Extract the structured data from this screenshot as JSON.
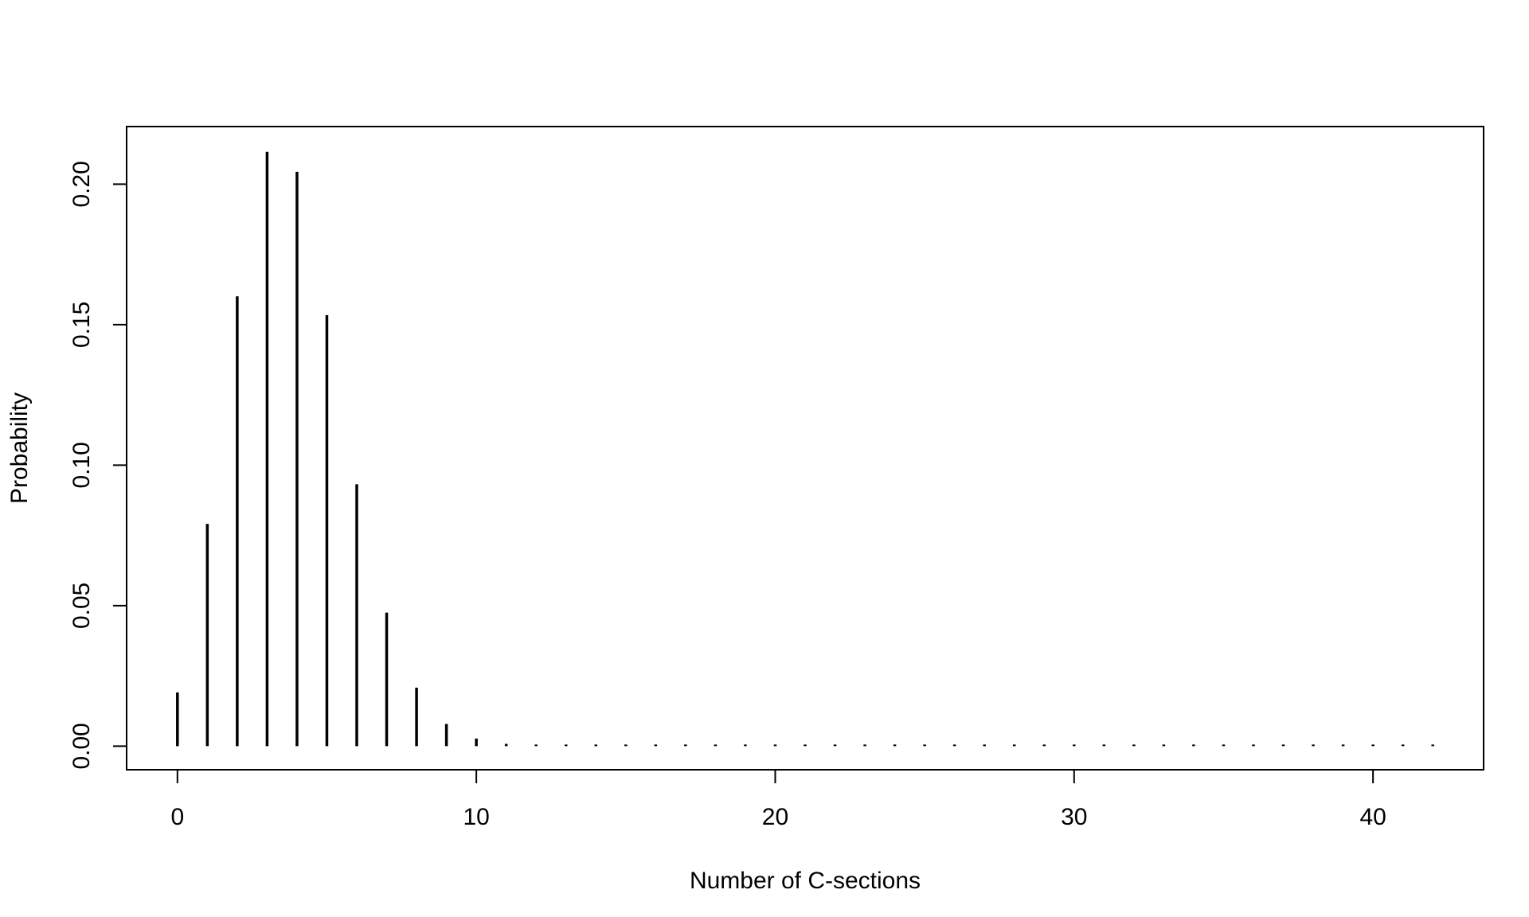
{
  "chart_data": {
    "type": "bar",
    "title": "",
    "xlabel": "Number of C-sections",
    "ylabel": "Probability",
    "xlim": [
      -1.7,
      43.7
    ],
    "ylim": [
      -0.0084,
      0.2205
    ],
    "xticks": [
      0,
      10,
      20,
      30,
      40
    ],
    "xtick_labels": [
      "0",
      "10",
      "20",
      "30",
      "40"
    ],
    "yticks": [
      0.0,
      0.05,
      0.1,
      0.15,
      0.2
    ],
    "ytick_labels": [
      "0.00",
      "0.05",
      "0.10",
      "0.15",
      "0.20"
    ],
    "grid": false,
    "legend": "none",
    "x": [
      0,
      1,
      2,
      3,
      4,
      5,
      6,
      7,
      8,
      9,
      10,
      11,
      12,
      13,
      14,
      15,
      16,
      17,
      18,
      19,
      20,
      21,
      22,
      23,
      24,
      25,
      26,
      27,
      28,
      29,
      30,
      31,
      32,
      33,
      34,
      35,
      36,
      37,
      38,
      39,
      40,
      41,
      42
    ],
    "values": [
      0.0191,
      0.0791,
      0.1601,
      0.2115,
      0.2044,
      0.1534,
      0.0932,
      0.0475,
      0.0208,
      0.0079,
      0.0027,
      0.0008,
      0.0002,
      0.0001,
      0,
      0,
      0,
      0,
      0,
      0,
      0,
      0,
      0,
      0,
      0,
      0,
      0,
      0,
      0,
      0,
      0,
      0,
      0,
      0,
      0,
      0,
      0,
      0,
      0,
      0,
      0,
      0,
      0
    ],
    "color": "#000000"
  }
}
